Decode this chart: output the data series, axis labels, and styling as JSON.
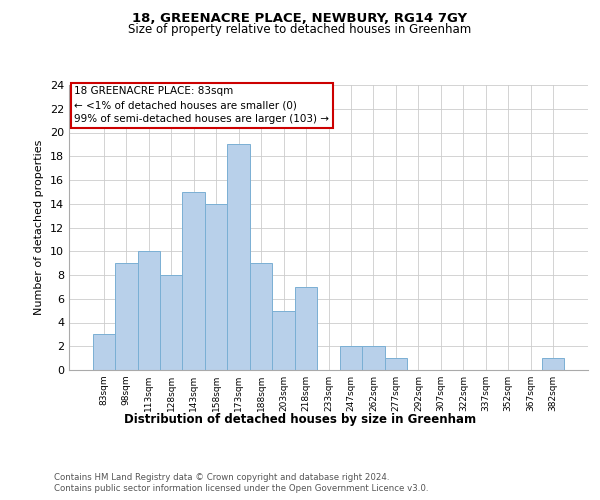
{
  "title": "18, GREENACRE PLACE, NEWBURY, RG14 7GY",
  "subtitle": "Size of property relative to detached houses in Greenham",
  "xlabel": "Distribution of detached houses by size in Greenham",
  "ylabel": "Number of detached properties",
  "bar_color": "#b8d0ea",
  "bar_edge_color": "#7aafd4",
  "annotation_box_color": "#cc0000",
  "annotation_lines": [
    "18 GREENACRE PLACE: 83sqm",
    "← <1% of detached houses are smaller (0)",
    "99% of semi-detached houses are larger (103) →"
  ],
  "categories": [
    "83sqm",
    "98sqm",
    "113sqm",
    "128sqm",
    "143sqm",
    "158sqm",
    "173sqm",
    "188sqm",
    "203sqm",
    "218sqm",
    "233sqm",
    "247sqm",
    "262sqm",
    "277sqm",
    "292sqm",
    "307sqm",
    "322sqm",
    "337sqm",
    "352sqm",
    "367sqm",
    "382sqm"
  ],
  "values": [
    3,
    9,
    10,
    8,
    15,
    14,
    19,
    9,
    5,
    7,
    0,
    2,
    2,
    1,
    0,
    0,
    0,
    0,
    0,
    0,
    1
  ],
  "ylim": [
    0,
    24
  ],
  "yticks": [
    0,
    2,
    4,
    6,
    8,
    10,
    12,
    14,
    16,
    18,
    20,
    22,
    24
  ],
  "grid_color": "#cccccc",
  "footer_line1": "Contains HM Land Registry data © Crown copyright and database right 2024.",
  "footer_line2": "Contains public sector information licensed under the Open Government Licence v3.0."
}
